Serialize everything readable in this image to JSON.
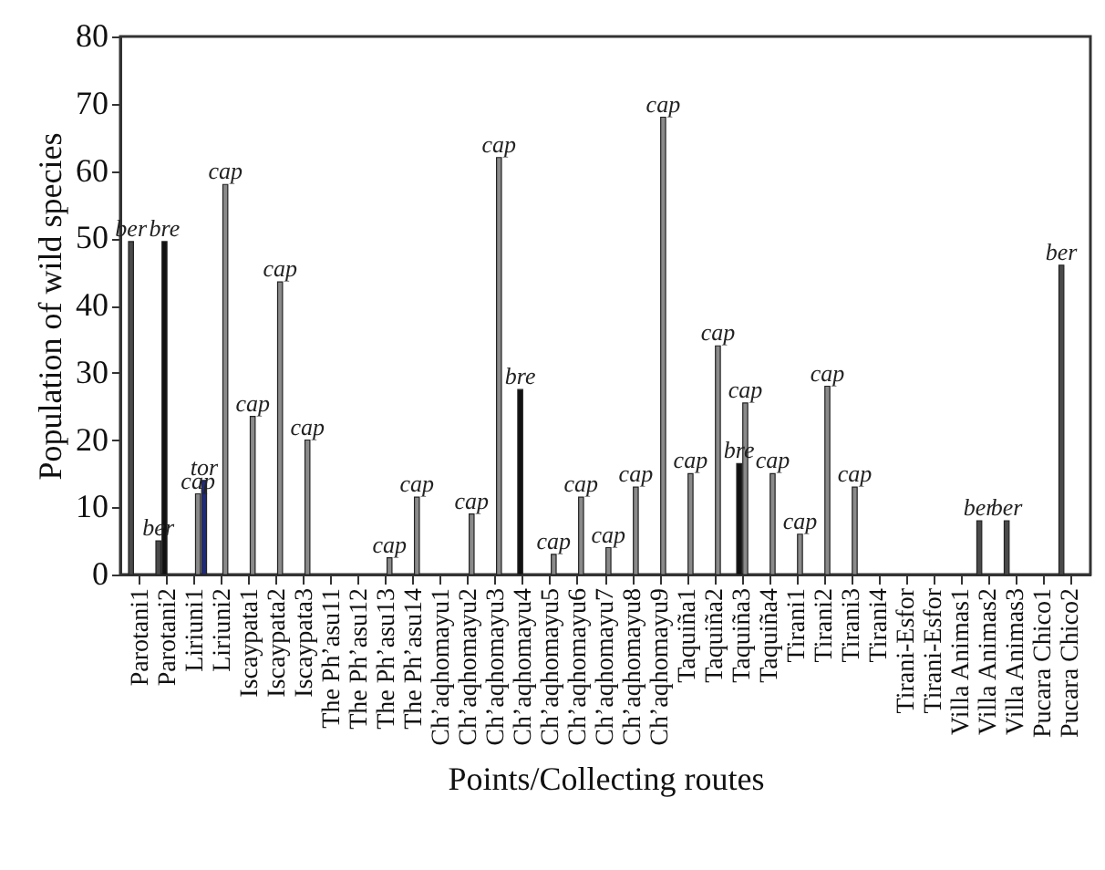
{
  "chart_data": {
    "type": "bar",
    "xlabel": "Points/Collecting routes",
    "ylabel": "Population of wild species",
    "categories": [
      "Parotani1",
      "Parotani2",
      "Liriuni1",
      "Liriuni2",
      "Iscaypata1",
      "Iscaypata2",
      "Iscaypata3",
      "The Ph’asu11",
      "The Ph’asu12",
      "The Ph’asu13",
      "The Ph’asu14",
      "Ch’aqhomayu1",
      "Ch’aqhomayu2",
      "Ch’aqhomayu3",
      "Ch’aqhomayu4",
      "Ch’aqhomayu5",
      "Ch’aqhomayu6",
      "Ch’aqhomayu7",
      "Ch’aqhomayu8",
      "Ch’aqhomayu9",
      "Taquiña1",
      "Taquiña2",
      "Taquiña3",
      "Taquiña4",
      "Tirani1",
      "Tirani2",
      "Tirani3",
      "Tirani4",
      "Tirani-Esfor",
      "Tirani-Esfor",
      "Villa Animas1",
      "Villa Animas2",
      "Villa Animas3",
      "Pucara Chico1",
      "Pucara Chico2"
    ],
    "series": [
      {
        "name": "ber",
        "color": "#4a4a4a",
        "values": [
          49.5,
          5,
          null,
          null,
          null,
          null,
          null,
          null,
          null,
          null,
          null,
          null,
          null,
          null,
          null,
          null,
          null,
          null,
          null,
          null,
          null,
          null,
          null,
          null,
          null,
          null,
          null,
          null,
          null,
          null,
          null,
          8,
          8,
          null,
          46
        ]
      },
      {
        "name": "bre",
        "color": "#111111",
        "values": [
          null,
          49.5,
          null,
          null,
          null,
          null,
          null,
          null,
          null,
          null,
          null,
          null,
          null,
          null,
          27.5,
          null,
          null,
          null,
          null,
          null,
          null,
          null,
          16.5,
          null,
          null,
          null,
          null,
          null,
          null,
          null,
          null,
          null,
          null,
          null,
          null
        ]
      },
      {
        "name": "cap",
        "color": "#8a8a8a",
        "values": [
          null,
          null,
          12,
          58,
          23.5,
          43.5,
          20,
          null,
          null,
          2.5,
          11.5,
          null,
          9,
          62,
          null,
          3,
          11.5,
          4,
          13,
          68,
          15,
          34,
          25.5,
          15,
          6,
          28,
          13,
          null,
          null,
          null,
          null,
          null,
          null,
          null,
          null
        ]
      },
      {
        "name": "tor",
        "color": "#1f2a7a",
        "values": [
          null,
          null,
          14,
          null,
          null,
          null,
          null,
          null,
          null,
          null,
          null,
          null,
          null,
          null,
          null,
          null,
          null,
          null,
          null,
          null,
          null,
          null,
          null,
          null,
          null,
          null,
          null,
          null,
          null,
          null,
          null,
          null,
          null,
          null,
          null
        ]
      }
    ],
    "ylim": [
      0,
      80
    ],
    "yticks": [
      0,
      10,
      20,
      30,
      40,
      50,
      60,
      70,
      80
    ],
    "grid": false
  }
}
